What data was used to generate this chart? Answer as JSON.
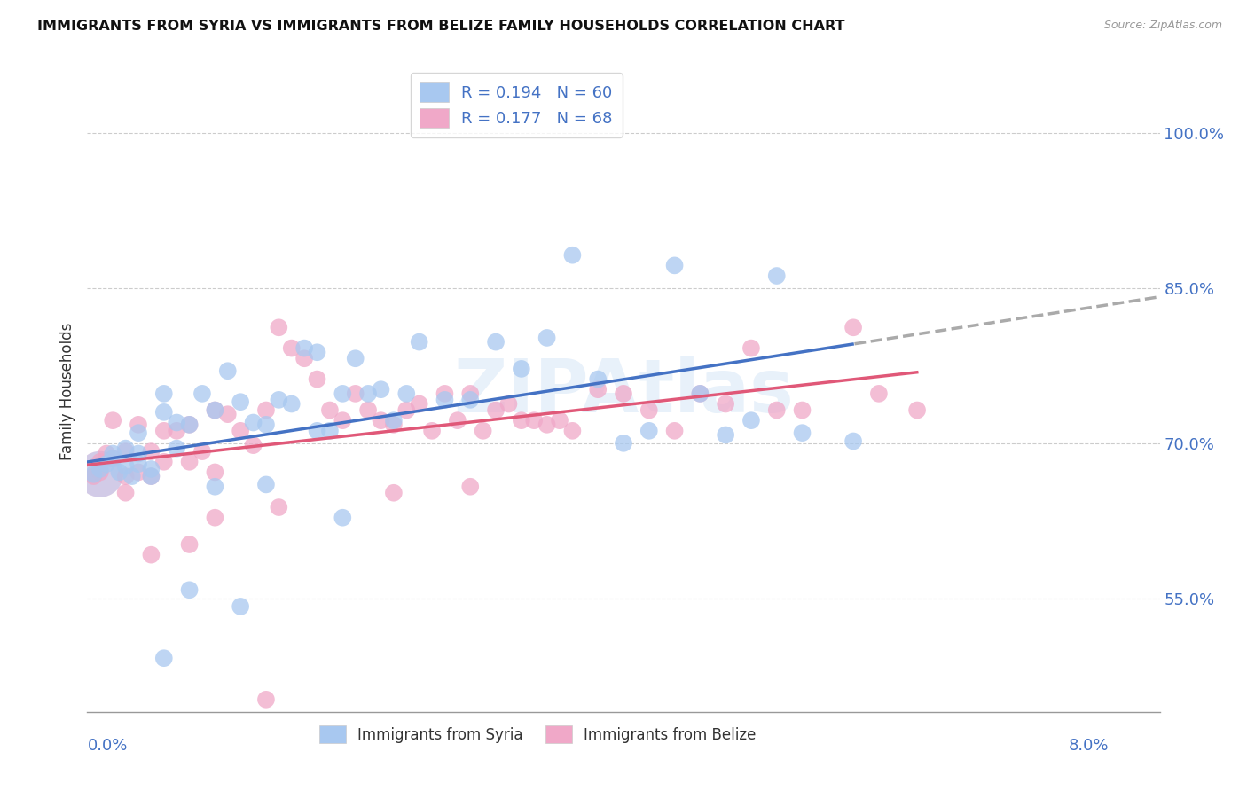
{
  "title": "IMMIGRANTS FROM SYRIA VS IMMIGRANTS FROM BELIZE FAMILY HOUSEHOLDS CORRELATION CHART",
  "source": "Source: ZipAtlas.com",
  "ylabel": "Family Households",
  "yticks_labels": [
    "55.0%",
    "70.0%",
    "85.0%",
    "100.0%"
  ],
  "ytick_vals": [
    0.55,
    0.7,
    0.85,
    1.0
  ],
  "xlim": [
    0.0,
    0.084
  ],
  "ylim": [
    0.44,
    1.06
  ],
  "legend_syria_r": "0.194",
  "legend_syria_n": "60",
  "legend_belize_r": "0.177",
  "legend_belize_n": "68",
  "color_syria": "#a8c8f0",
  "color_belize": "#f0a8c8",
  "color_syria_line": "#4472c4",
  "color_belize_line": "#e05878",
  "color_labels": "#4472c4",
  "background_color": "#ffffff",
  "grid_color": "#cccccc",
  "dashed_line_color": "#aaaaaa",
  "watermark": "ZIPAtlas",
  "syria_x": [
    0.0005,
    0.001,
    0.0015,
    0.002,
    0.002,
    0.0025,
    0.003,
    0.003,
    0.0035,
    0.004,
    0.004,
    0.005,
    0.005,
    0.006,
    0.006,
    0.007,
    0.007,
    0.008,
    0.009,
    0.01,
    0.011,
    0.012,
    0.013,
    0.014,
    0.015,
    0.016,
    0.017,
    0.018,
    0.019,
    0.02,
    0.021,
    0.022,
    0.023,
    0.024,
    0.025,
    0.026,
    0.028,
    0.03,
    0.032,
    0.034,
    0.036,
    0.038,
    0.04,
    0.042,
    0.044,
    0.046,
    0.048,
    0.05,
    0.052,
    0.054,
    0.056,
    0.06,
    0.014,
    0.018,
    0.008,
    0.012,
    0.02,
    0.01,
    0.006,
    0.004
  ],
  "syria_y": [
    0.67,
    0.675,
    0.68,
    0.685,
    0.69,
    0.672,
    0.678,
    0.695,
    0.668,
    0.68,
    0.71,
    0.675,
    0.668,
    0.73,
    0.748,
    0.72,
    0.695,
    0.718,
    0.748,
    0.732,
    0.77,
    0.74,
    0.72,
    0.718,
    0.742,
    0.738,
    0.792,
    0.788,
    0.712,
    0.748,
    0.782,
    0.748,
    0.752,
    0.722,
    0.748,
    0.798,
    0.742,
    0.742,
    0.798,
    0.772,
    0.802,
    0.882,
    0.762,
    0.7,
    0.712,
    0.872,
    0.748,
    0.708,
    0.722,
    0.862,
    0.71,
    0.702,
    0.66,
    0.712,
    0.558,
    0.542,
    0.628,
    0.658,
    0.492,
    0.69
  ],
  "belize_x": [
    0.0005,
    0.001,
    0.001,
    0.0015,
    0.002,
    0.002,
    0.003,
    0.003,
    0.004,
    0.004,
    0.005,
    0.005,
    0.006,
    0.006,
    0.007,
    0.008,
    0.008,
    0.009,
    0.01,
    0.01,
    0.011,
    0.012,
    0.013,
    0.014,
    0.015,
    0.016,
    0.017,
    0.018,
    0.019,
    0.02,
    0.021,
    0.022,
    0.023,
    0.024,
    0.025,
    0.026,
    0.027,
    0.028,
    0.029,
    0.03,
    0.031,
    0.032,
    0.033,
    0.034,
    0.035,
    0.036,
    0.037,
    0.038,
    0.04,
    0.042,
    0.044,
    0.046,
    0.048,
    0.05,
    0.052,
    0.054,
    0.056,
    0.06,
    0.062,
    0.065,
    0.003,
    0.005,
    0.008,
    0.01,
    0.015,
    0.024,
    0.03,
    0.014
  ],
  "belize_y": [
    0.668,
    0.672,
    0.682,
    0.69,
    0.685,
    0.722,
    0.692,
    0.668,
    0.672,
    0.718,
    0.692,
    0.668,
    0.682,
    0.712,
    0.712,
    0.682,
    0.718,
    0.692,
    0.672,
    0.732,
    0.728,
    0.712,
    0.698,
    0.732,
    0.812,
    0.792,
    0.782,
    0.762,
    0.732,
    0.722,
    0.748,
    0.732,
    0.722,
    0.718,
    0.732,
    0.738,
    0.712,
    0.748,
    0.722,
    0.748,
    0.712,
    0.732,
    0.738,
    0.722,
    0.722,
    0.718,
    0.722,
    0.712,
    0.752,
    0.748,
    0.732,
    0.712,
    0.748,
    0.738,
    0.792,
    0.732,
    0.732,
    0.812,
    0.748,
    0.732,
    0.652,
    0.592,
    0.602,
    0.628,
    0.638,
    0.652,
    0.658,
    0.452
  ]
}
